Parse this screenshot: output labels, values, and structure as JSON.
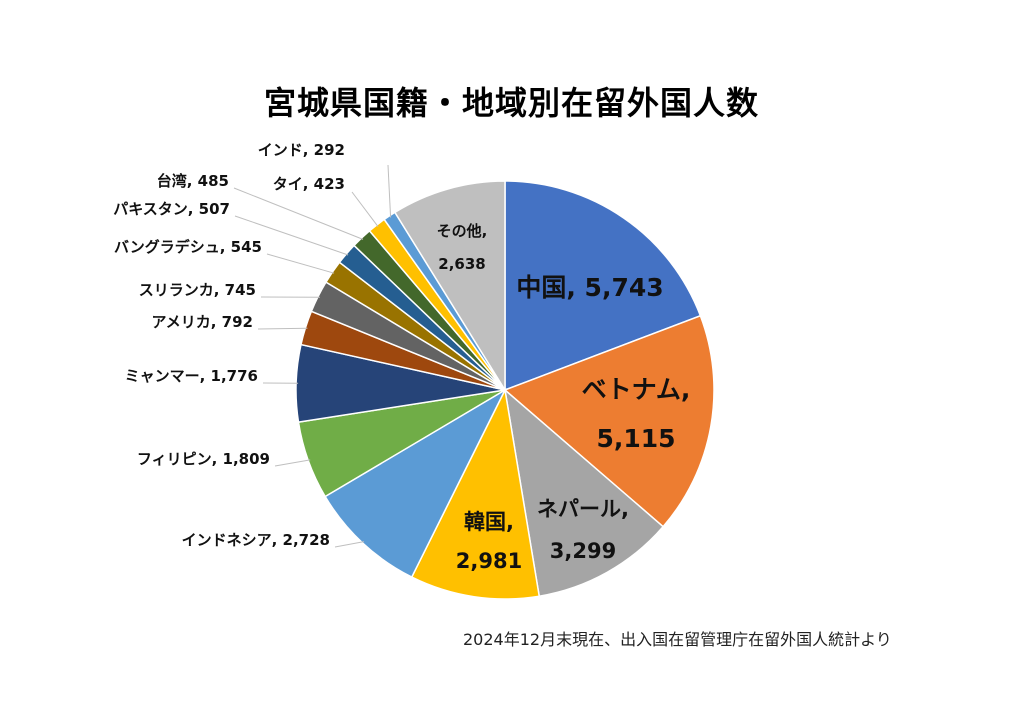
{
  "chart_data": {
    "type": "pie",
    "title": "宮城県国籍・地域別在留外国人数",
    "source": "2024年12月末現在、出入国在留管理庁在留外国人統計より",
    "slices": [
      {
        "label": "中国",
        "value": 5743,
        "display": "5,743",
        "color": "#4472C4"
      },
      {
        "label": "ベトナム",
        "value": 5115,
        "display": "5,115",
        "color": "#ED7D31"
      },
      {
        "label": "ネパール",
        "value": 3299,
        "display": "3,299",
        "color": "#A5A5A5"
      },
      {
        "label": "韓国",
        "value": 2981,
        "display": "2,981",
        "color": "#FFC000"
      },
      {
        "label": "インドネシア",
        "value": 2728,
        "display": "2,728",
        "color": "#5B9BD5"
      },
      {
        "label": "フィリピン",
        "value": 1809,
        "display": "1,809",
        "color": "#70AD47"
      },
      {
        "label": "ミャンマー",
        "value": 1776,
        "display": "1,776",
        "color": "#264478"
      },
      {
        "label": "アメリカ",
        "value": 792,
        "display": "792",
        "color": "#9E480E"
      },
      {
        "label": "スリランカ",
        "value": 745,
        "display": "745",
        "color": "#636363"
      },
      {
        "label": "バングラデシュ",
        "value": 545,
        "display": "545",
        "color": "#997300"
      },
      {
        "label": "パキスタン",
        "value": 507,
        "display": "507",
        "color": "#255E91"
      },
      {
        "label": "台湾",
        "value": 485,
        "display": "485",
        "color": "#43682B"
      },
      {
        "label": "タイ",
        "value": 423,
        "display": "423",
        "color": "#FFC000"
      },
      {
        "label": "インド",
        "value": 292,
        "display": "292",
        "color": "#5B9BD5"
      },
      {
        "label": "その他",
        "value": 2638,
        "display": "2,638",
        "color": "#BFBFBF"
      }
    ]
  }
}
